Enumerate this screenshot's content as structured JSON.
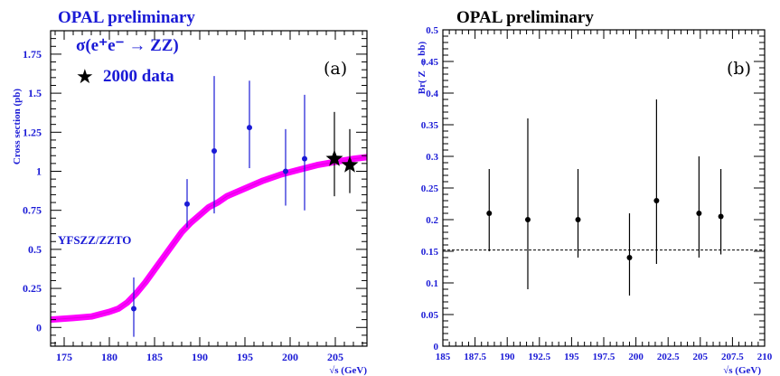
{
  "colors": {
    "axis": "#000000",
    "text": "#1a1ad6",
    "points_a": "#1a1ad6",
    "theory_band": "#ff00ff",
    "points_b": "#000000"
  },
  "chart_data": [
    {
      "type": "scatter",
      "panel": "(a)",
      "header": "OPAL preliminary",
      "legend_title": "σ(e⁺e⁻ → ZZ)",
      "legend_marker_label": "2000 data",
      "model_label": "YFSZZ/ZZTO",
      "xlabel": "√s (GeV)",
      "ylabel": "Cross section (pb)",
      "xlim": [
        173.5,
        208.5
      ],
      "ylim": [
        -0.12,
        1.9
      ],
      "xticks": [
        175,
        180,
        185,
        190,
        195,
        200,
        205
      ],
      "xtick_labels": [
        "175",
        "180",
        "185",
        "190",
        "195",
        "200",
        "205"
      ],
      "yticks": [
        0,
        0.25,
        0.5,
        0.75,
        1,
        1.25,
        1.5,
        1.75
      ],
      "ytick_labels": [
        "0",
        "0.25",
        "0.5",
        "0.75",
        "1",
        "1.25",
        "1.5",
        "1.75"
      ],
      "series": [
        {
          "marker": "dot",
          "points": [
            {
              "x": 182.7,
              "y": 0.12,
              "ylo": -0.06,
              "yhi": 0.32
            },
            {
              "x": 188.6,
              "y": 0.79,
              "ylo": 0.64,
              "yhi": 0.95
            },
            {
              "x": 191.6,
              "y": 1.13,
              "ylo": 0.73,
              "yhi": 1.61
            },
            {
              "x": 195.5,
              "y": 1.28,
              "ylo": 1.02,
              "yhi": 1.58
            },
            {
              "x": 199.5,
              "y": 1.0,
              "ylo": 0.78,
              "yhi": 1.27
            },
            {
              "x": 201.6,
              "y": 1.08,
              "ylo": 0.75,
              "yhi": 1.49
            }
          ]
        },
        {
          "marker": "star",
          "points": [
            {
              "x": 204.9,
              "y": 1.08,
              "ylo": 0.84,
              "yhi": 1.38
            },
            {
              "x": 206.6,
              "y": 1.04,
              "ylo": 0.86,
              "yhi": 1.27
            }
          ]
        }
      ],
      "theory_curve": {
        "x": [
          173.5,
          176,
          178,
          180,
          181,
          182,
          183,
          184,
          185,
          186,
          187,
          188,
          189,
          190,
          191,
          192,
          193,
          195,
          197,
          199,
          201,
          203,
          205,
          207,
          208.5
        ],
        "y": [
          0.05,
          0.06,
          0.07,
          0.1,
          0.12,
          0.16,
          0.22,
          0.29,
          0.37,
          0.45,
          0.53,
          0.61,
          0.67,
          0.72,
          0.77,
          0.8,
          0.84,
          0.89,
          0.94,
          0.98,
          1.01,
          1.04,
          1.06,
          1.08,
          1.09
        ]
      }
    },
    {
      "type": "scatter",
      "panel": "(b)",
      "header": "OPAL preliminary",
      "xlabel": "√s (GeV)",
      "ylabel": "Br( Z → bb)",
      "xlim": [
        185,
        210
      ],
      "ylim": [
        0,
        0.5
      ],
      "xticks": [
        185,
        187.5,
        190,
        192.5,
        195,
        197.5,
        200,
        202.5,
        205,
        207.5,
        210
      ],
      "xtick_labels": [
        "185",
        "187.5",
        "190",
        "192.5",
        "195",
        "197.5",
        "200",
        "202.5",
        "205",
        "207.5",
        "210"
      ],
      "yticks": [
        0,
        0.05,
        0.1,
        0.15,
        0.2,
        0.25,
        0.3,
        0.35,
        0.4,
        0.45,
        0.5
      ],
      "ytick_labels": [
        "0",
        "0.05",
        "0.1",
        "0.15",
        "0.2",
        "0.25",
        "0.3",
        "0.35",
        "0.4",
        "0.45",
        "0.5"
      ],
      "reference_line": 0.152,
      "points": [
        {
          "x": 188.6,
          "y": 0.21,
          "ylo": 0.15,
          "yhi": 0.28
        },
        {
          "x": 191.6,
          "y": 0.2,
          "ylo": 0.09,
          "yhi": 0.36
        },
        {
          "x": 195.5,
          "y": 0.2,
          "ylo": 0.14,
          "yhi": 0.28
        },
        {
          "x": 199.5,
          "y": 0.14,
          "ylo": 0.08,
          "yhi": 0.21
        },
        {
          "x": 201.6,
          "y": 0.23,
          "ylo": 0.13,
          "yhi": 0.39
        },
        {
          "x": 204.9,
          "y": 0.21,
          "ylo": 0.14,
          "yhi": 0.3
        },
        {
          "x": 206.6,
          "y": 0.205,
          "ylo": 0.145,
          "yhi": 0.28
        }
      ]
    }
  ]
}
